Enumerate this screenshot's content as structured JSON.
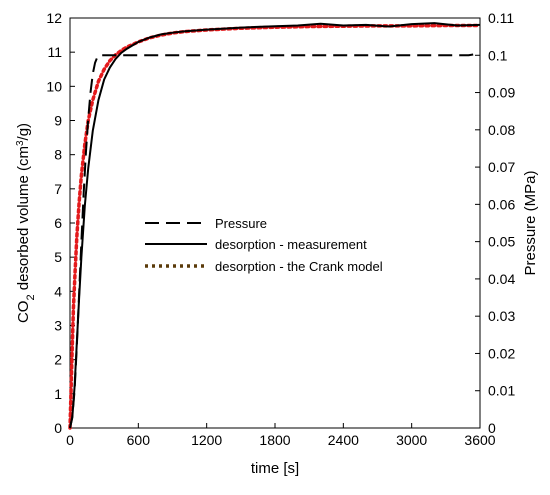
{
  "chart_data": {
    "type": "line",
    "xlabel": "time [s]",
    "ylabel_left": {
      "main": "CO",
      "sub": "2",
      "mid": " desorbed volume (cm",
      "sup": "3",
      "end": "/g)"
    },
    "ylabel_right": "Pressure (MPa)",
    "xlim": [
      0,
      3600
    ],
    "ylim_left": [
      0,
      12
    ],
    "ylim_right": [
      0,
      0.11
    ],
    "x_ticks": [
      "0",
      "600",
      "1200",
      "1800",
      "2400",
      "3000",
      "3600"
    ],
    "y_left_ticks": [
      "0",
      "1",
      "2",
      "3",
      "4",
      "5",
      "6",
      "7",
      "8",
      "9",
      "10",
      "11",
      "12"
    ],
    "y_right_ticks": [
      "0",
      "0.01",
      "0.02",
      "0.03",
      "0.04",
      "0.05",
      "0.06",
      "0.07",
      "0.08",
      "0.09",
      "0.1",
      "0.11"
    ],
    "grid": false,
    "legend_position": "center",
    "colors": {
      "pressure": "#000000",
      "measurement": "#000000",
      "crank": "#e31a1c",
      "crank_dots": "#5a3a0a"
    },
    "series": [
      {
        "name": "Pressure",
        "axis": "right",
        "style": "dashed",
        "x": [
          0,
          20,
          40,
          60,
          80,
          100,
          120,
          140,
          160,
          180,
          200,
          220,
          240,
          260,
          280,
          300,
          400,
          600,
          1200,
          1800,
          2400,
          3000,
          3500,
          3600
        ],
        "y": [
          0,
          0.003,
          0.01,
          0.022,
          0.036,
          0.05,
          0.063,
          0.074,
          0.083,
          0.09,
          0.095,
          0.098,
          0.0995,
          0.1,
          0.1,
          0.1,
          0.1,
          0.1,
          0.1,
          0.1,
          0.1,
          0.1,
          0.1,
          0.1005
        ]
      },
      {
        "name": "desorption - measurement",
        "axis": "left",
        "style": "solid",
        "x": [
          0,
          20,
          40,
          60,
          80,
          100,
          130,
          160,
          200,
          250,
          300,
          350,
          400,
          450,
          500,
          600,
          700,
          800,
          900,
          1000,
          1200,
          1500,
          1800,
          2000,
          2200,
          2400,
          2600,
          2800,
          3000,
          3200,
          3400,
          3600
        ],
        "y": [
          0,
          0.3,
          1.2,
          2.5,
          3.8,
          5.0,
          6.5,
          7.6,
          8.7,
          9.6,
          10.2,
          10.55,
          10.8,
          10.98,
          11.1,
          11.3,
          11.43,
          11.52,
          11.57,
          11.61,
          11.66,
          11.72,
          11.76,
          11.78,
          11.83,
          11.78,
          11.8,
          11.75,
          11.82,
          11.85,
          11.78,
          11.8
        ]
      },
      {
        "name": "desorption - the Crank model",
        "axis": "left",
        "style": "dotted",
        "x": [
          0,
          10,
          20,
          30,
          45,
          60,
          80,
          100,
          130,
          160,
          200,
          250,
          300,
          350,
          400,
          450,
          500,
          600,
          700,
          800,
          900,
          1000,
          1200,
          1500,
          1800,
          2100,
          2400,
          2700,
          3000,
          3300,
          3600
        ],
        "y": [
          0,
          1.2,
          2.4,
          3.5,
          4.6,
          5.6,
          6.6,
          7.4,
          8.3,
          9.0,
          9.6,
          10.15,
          10.5,
          10.75,
          10.92,
          11.05,
          11.15,
          11.3,
          11.42,
          11.5,
          11.56,
          11.6,
          11.65,
          11.7,
          11.73,
          11.75,
          11.76,
          11.77,
          11.77,
          11.78,
          11.78
        ]
      }
    ]
  }
}
